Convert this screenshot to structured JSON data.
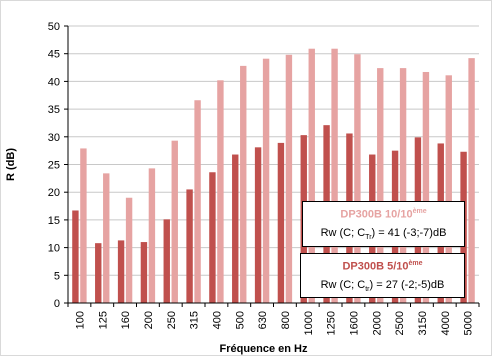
{
  "chart_data": {
    "type": "bar",
    "xlabel": "Fréquence en Hz",
    "ylabel": "R (dB)",
    "ylim": [
      0,
      50
    ],
    "yticks": [
      0,
      5,
      10,
      15,
      20,
      25,
      30,
      35,
      40,
      45,
      50
    ],
    "grid": "horizontal",
    "categories": [
      "100",
      "125",
      "160",
      "200",
      "250",
      "315",
      "400",
      "500",
      "630",
      "800",
      "1000",
      "1250",
      "1600",
      "2000",
      "2500",
      "3150",
      "4000",
      "5000"
    ],
    "series": [
      {
        "name": "DP300B 5/10ème",
        "color": "#c0504d",
        "values": [
          16.7,
          10.8,
          11.3,
          11.0,
          15.1,
          20.5,
          23.6,
          26.8,
          28.1,
          28.9,
          30.3,
          32.1,
          30.6,
          26.8,
          27.5,
          29.9,
          28.8,
          27.3
        ]
      },
      {
        "name": "DP300B 10/10ème",
        "color": "#e6a3a2",
        "values": [
          27.9,
          23.4,
          19.0,
          24.3,
          29.3,
          36.6,
          40.2,
          42.8,
          44.1,
          44.8,
          45.9,
          45.9,
          44.9,
          42.4,
          42.4,
          41.7,
          41.1,
          44.2
        ]
      }
    ],
    "legend_entries": [
      {
        "name_main": "DP300B 10/10",
        "name_sup": "ème",
        "name_color": "#e6a3a2",
        "rw_pre": "Rw (C; C",
        "rw_sub": "Tr",
        "rw_post": ") = 41 (-3;-7)dB"
      },
      {
        "name_main": "DP300B 5/10",
        "name_sup": "ème",
        "name_color": "#c0504d",
        "rw_pre": "Rw (C; C",
        "rw_sub": "tr",
        "rw_post": ") = 27 (-2;-5)dB"
      }
    ]
  }
}
